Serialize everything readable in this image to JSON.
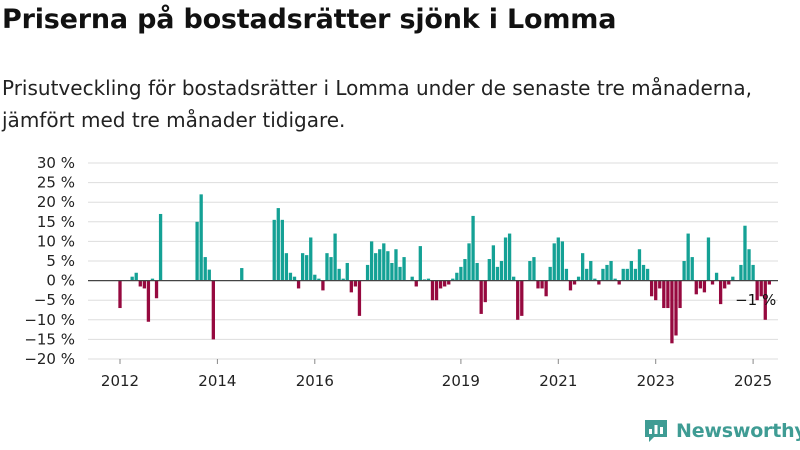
{
  "title": "Priserna på bostadsrätter sjönk i Lomma",
  "subtitle": "Prisutveckling för bostadsrätter i Lomma under de senaste tre månaderna, jämfört med tre månader tidigare.",
  "brand": {
    "name": "Newsworthy",
    "icon": "newsworthy-logo-icon"
  },
  "colors": {
    "positive": "#14a195",
    "negative": "#96093f",
    "grid": "#dddddd",
    "baseline": "#444444",
    "brand": "#3f9c94"
  },
  "chart_data": {
    "type": "bar",
    "unit": "%",
    "ylim": [
      -20,
      30
    ],
    "yticks": [
      30,
      25,
      20,
      15,
      10,
      5,
      0,
      -5,
      -10,
      -15,
      -20
    ],
    "ytick_labels": [
      "30 %",
      "25 %",
      "20 %",
      "15 %",
      "10 %",
      "5 %",
      "0 %",
      "−5 %",
      "−10 %",
      "−15 %",
      "−20 %"
    ],
    "xticks": [
      "2012",
      "2014",
      "2016",
      "2019",
      "2021",
      "2023",
      "2025"
    ],
    "grid": true,
    "legend": "none",
    "annotation": {
      "text": "−1 %",
      "date": "2025-01"
    },
    "values": [
      {
        "date": "2012-01",
        "value": -7
      },
      {
        "date": "2012-04",
        "value": 1
      },
      {
        "date": "2012-05",
        "value": 2
      },
      {
        "date": "2012-06",
        "value": -1.5
      },
      {
        "date": "2012-07",
        "value": -2
      },
      {
        "date": "2012-08",
        "value": -10.5
      },
      {
        "date": "2012-09",
        "value": 0.5
      },
      {
        "date": "2012-10",
        "value": -4.5
      },
      {
        "date": "2012-11",
        "value": 17
      },
      {
        "date": "2013-08",
        "value": 15
      },
      {
        "date": "2013-09",
        "value": 22
      },
      {
        "date": "2013-10",
        "value": 6
      },
      {
        "date": "2013-11",
        "value": 2.8
      },
      {
        "date": "2013-12",
        "value": -15
      },
      {
        "date": "2014-07",
        "value": 3.2
      },
      {
        "date": "2015-03",
        "value": 15.5
      },
      {
        "date": "2015-04",
        "value": 18.5
      },
      {
        "date": "2015-05",
        "value": 15.5
      },
      {
        "date": "2015-06",
        "value": 7
      },
      {
        "date": "2015-07",
        "value": 2
      },
      {
        "date": "2015-08",
        "value": 1
      },
      {
        "date": "2015-09",
        "value": -2
      },
      {
        "date": "2015-10",
        "value": 7
      },
      {
        "date": "2015-11",
        "value": 6.5
      },
      {
        "date": "2015-12",
        "value": 11
      },
      {
        "date": "2016-01",
        "value": 1.5
      },
      {
        "date": "2016-02",
        "value": 0.5
      },
      {
        "date": "2016-03",
        "value": -2.5
      },
      {
        "date": "2016-04",
        "value": 7
      },
      {
        "date": "2016-05",
        "value": 6
      },
      {
        "date": "2016-06",
        "value": 12
      },
      {
        "date": "2016-07",
        "value": 3
      },
      {
        "date": "2016-08",
        "value": 0.5
      },
      {
        "date": "2016-09",
        "value": 4.5
      },
      {
        "date": "2016-10",
        "value": -3
      },
      {
        "date": "2016-11",
        "value": -1.5
      },
      {
        "date": "2016-12",
        "value": -9
      },
      {
        "date": "2017-02",
        "value": 4
      },
      {
        "date": "2017-03",
        "value": 10
      },
      {
        "date": "2017-04",
        "value": 7
      },
      {
        "date": "2017-05",
        "value": 8
      },
      {
        "date": "2017-06",
        "value": 9.5
      },
      {
        "date": "2017-07",
        "value": 7.5
      },
      {
        "date": "2017-08",
        "value": 4.5
      },
      {
        "date": "2017-09",
        "value": 8
      },
      {
        "date": "2017-10",
        "value": 3.5
      },
      {
        "date": "2017-11",
        "value": 6
      },
      {
        "date": "2018-01",
        "value": 1
      },
      {
        "date": "2018-02",
        "value": -1.5
      },
      {
        "date": "2018-03",
        "value": 8.8
      },
      {
        "date": "2018-04",
        "value": 0.3
      },
      {
        "date": "2018-05",
        "value": 0.5
      },
      {
        "date": "2018-06",
        "value": -5
      },
      {
        "date": "2018-07",
        "value": -5
      },
      {
        "date": "2018-08",
        "value": -2
      },
      {
        "date": "2018-09",
        "value": -1.5
      },
      {
        "date": "2018-10",
        "value": -1
      },
      {
        "date": "2018-11",
        "value": 0.5
      },
      {
        "date": "2018-12",
        "value": 2
      },
      {
        "date": "2019-01",
        "value": 3.5
      },
      {
        "date": "2019-02",
        "value": 5.5
      },
      {
        "date": "2019-03",
        "value": 9.5
      },
      {
        "date": "2019-04",
        "value": 16.5
      },
      {
        "date": "2019-05",
        "value": 4.5
      },
      {
        "date": "2019-06",
        "value": -8.5
      },
      {
        "date": "2019-07",
        "value": -5.5
      },
      {
        "date": "2019-08",
        "value": 5.5
      },
      {
        "date": "2019-09",
        "value": 9
      },
      {
        "date": "2019-10",
        "value": 3.5
      },
      {
        "date": "2019-11",
        "value": 5
      },
      {
        "date": "2019-12",
        "value": 11
      },
      {
        "date": "2020-01",
        "value": 12
      },
      {
        "date": "2020-02",
        "value": 1
      },
      {
        "date": "2020-03",
        "value": -10
      },
      {
        "date": "2020-04",
        "value": -9
      },
      {
        "date": "2020-06",
        "value": 5
      },
      {
        "date": "2020-07",
        "value": 6
      },
      {
        "date": "2020-08",
        "value": -2
      },
      {
        "date": "2020-09",
        "value": -2
      },
      {
        "date": "2020-10",
        "value": -4
      },
      {
        "date": "2020-11",
        "value": 3.5
      },
      {
        "date": "2020-12",
        "value": 9.5
      },
      {
        "date": "2021-01",
        "value": 11
      },
      {
        "date": "2021-02",
        "value": 10
      },
      {
        "date": "2021-03",
        "value": 3
      },
      {
        "date": "2021-04",
        "value": -2.5
      },
      {
        "date": "2021-05",
        "value": -1
      },
      {
        "date": "2021-06",
        "value": 1
      },
      {
        "date": "2021-07",
        "value": 7
      },
      {
        "date": "2021-08",
        "value": 3
      },
      {
        "date": "2021-09",
        "value": 5
      },
      {
        "date": "2021-10",
        "value": 0.5
      },
      {
        "date": "2021-11",
        "value": -1
      },
      {
        "date": "2021-12",
        "value": 3
      },
      {
        "date": "2022-01",
        "value": 4
      },
      {
        "date": "2022-02",
        "value": 5
      },
      {
        "date": "2022-03",
        "value": 0.5
      },
      {
        "date": "2022-04",
        "value": -1
      },
      {
        "date": "2022-05",
        "value": 3
      },
      {
        "date": "2022-06",
        "value": 3
      },
      {
        "date": "2022-07",
        "value": 5
      },
      {
        "date": "2022-08",
        "value": 3
      },
      {
        "date": "2022-09",
        "value": 8
      },
      {
        "date": "2022-10",
        "value": 4
      },
      {
        "date": "2022-11",
        "value": 3
      },
      {
        "date": "2022-12",
        "value": -4
      },
      {
        "date": "2023-01",
        "value": -5
      },
      {
        "date": "2023-02",
        "value": -2
      },
      {
        "date": "2023-03",
        "value": -7
      },
      {
        "date": "2023-04",
        "value": -7
      },
      {
        "date": "2023-05",
        "value": -16
      },
      {
        "date": "2023-06",
        "value": -14
      },
      {
        "date": "2023-07",
        "value": -7
      },
      {
        "date": "2023-08",
        "value": 5
      },
      {
        "date": "2023-09",
        "value": 12
      },
      {
        "date": "2023-10",
        "value": 6
      },
      {
        "date": "2023-11",
        "value": -3.5
      },
      {
        "date": "2023-12",
        "value": -2
      },
      {
        "date": "2024-01",
        "value": -3
      },
      {
        "date": "2024-02",
        "value": 11
      },
      {
        "date": "2024-03",
        "value": -1
      },
      {
        "date": "2024-04",
        "value": 2
      },
      {
        "date": "2024-05",
        "value": -6
      },
      {
        "date": "2024-06",
        "value": -2
      },
      {
        "date": "2024-07",
        "value": -1
      },
      {
        "date": "2024-08",
        "value": 1
      },
      {
        "date": "2024-10",
        "value": 4
      },
      {
        "date": "2024-11",
        "value": 14
      },
      {
        "date": "2024-12",
        "value": 8
      },
      {
        "date": "2025-01",
        "value": 4
      },
      {
        "date": "2025-02",
        "value": -5
      },
      {
        "date": "2025-03",
        "value": -4
      },
      {
        "date": "2025-04",
        "value": -10
      },
      {
        "date": "2025-05",
        "value": -1
      }
    ]
  }
}
